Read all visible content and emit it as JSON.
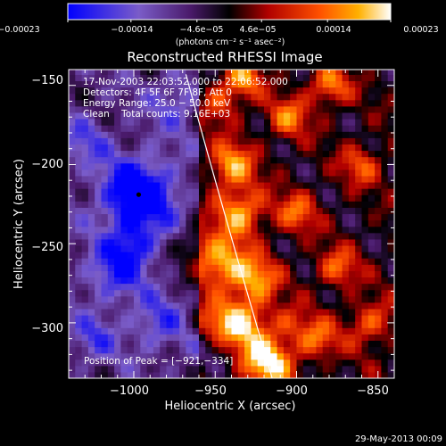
{
  "chart_data": {
    "type": "heatmap",
    "title": "Reconstructed RHESSI Image",
    "xlabel": "Heliocentric X (arcsec)",
    "ylabel": "Heliocentric Y (arcsec)",
    "xlim": [
      -1040,
      -840
    ],
    "ylim": [
      -335,
      -140
    ],
    "xticks": [
      -1000,
      -950,
      -900,
      -850
    ],
    "yticks": [
      -150,
      -200,
      -250,
      -300
    ],
    "xtick_labels": [
      "−1000",
      "−950",
      "−900",
      "−850"
    ],
    "ytick_labels": [
      "−150",
      "−200",
      "−250",
      "−300"
    ],
    "colorbar": {
      "range": [
        -0.00023,
        0.00023
      ],
      "tick_values": [
        -0.00023,
        -0.00014,
        -4.6e-05,
        4.6e-05,
        0.00014,
        0.00023
      ],
      "tick_labels": [
        "−0.00023",
        "−0.00014",
        "−4.6e−05",
        "4.6e−05",
        "0.00014",
        "0.00023"
      ],
      "unit_label": "(photons cm⁻² s⁻¹ asec⁻²)",
      "colors": [
        "#0000ff",
        "#8060c0",
        "#3a1050",
        "#000000",
        "#c00000",
        "#ff4000",
        "#ffb000",
        "#ffffff"
      ]
    },
    "annotations": {
      "time_range": "17‑Nov‑2003 22:03:52.000 to 22:06:52.000",
      "detectors": "Detectors: 4F 5F 6F 7F 8F, Att 0",
      "energy": "Energy Range: 25.0 − 50.0 keV",
      "clean": "Clean    Total counts: 9.16E+03",
      "peak": "Position of Peak = [−921,−334]"
    },
    "peak_position": [
      -921,
      -334
    ],
    "minimum_marker": [
      -997,
      -219
    ],
    "limb_curve": [
      [
        -968,
        -143
      ],
      [
        -945,
        -230
      ],
      [
        -915,
        -335
      ]
    ]
  },
  "footer": {
    "date": "29‑May‑2013 00:09"
  }
}
